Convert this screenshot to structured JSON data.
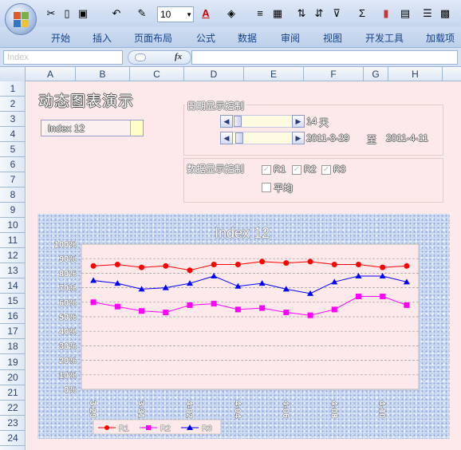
{
  "ribbon": {
    "font_size": "10",
    "tabs": [
      "开始",
      "插入",
      "页面布局",
      "公式",
      "数据",
      "审阅",
      "视图",
      "开发工具",
      "加载项"
    ]
  },
  "formula_bar": {
    "name_box": "Index",
    "fx": "fx",
    "content": ""
  },
  "columns": [
    "A",
    "B",
    "C",
    "D",
    "E",
    "F",
    "G",
    "H"
  ],
  "rows": [
    "1",
    "2",
    "3",
    "4",
    "5",
    "6",
    "7",
    "8",
    "9",
    "10",
    "11",
    "12",
    "13",
    "14",
    "15",
    "16",
    "17",
    "18",
    "19",
    "20",
    "21",
    "22",
    "23",
    "24"
  ],
  "sheet": {
    "title": "动态图表演示",
    "index_combo": "Index 12",
    "date_group": {
      "label": "日期显示控制",
      "days_value": "14",
      "days_unit": "天",
      "start_date": "2011-3-29",
      "to": "至",
      "end_date": "2011-4-11"
    },
    "data_group": {
      "label": "数据显示控制",
      "checks": [
        {
          "label": "R1",
          "checked": true
        },
        {
          "label": "R2",
          "checked": true
        },
        {
          "label": "R3",
          "checked": true
        },
        {
          "label": "平均",
          "checked": false
        }
      ]
    }
  },
  "colors": {
    "R1": "#ff0000",
    "R2": "#ff00ff",
    "R3": "#0000ff",
    "plot_bg": "#fde9e9"
  },
  "chart_data": {
    "type": "line",
    "title": "Index 12",
    "ylim": [
      0,
      100
    ],
    "y_ticks": [
      "0%",
      "10%",
      "20%",
      "30%",
      "40%",
      "50%",
      "60%",
      "70%",
      "80%",
      "90%",
      "100%"
    ],
    "x_labels": [
      "3-29",
      "3-31",
      "4-02",
      "4-04",
      "4-06",
      "4-08",
      "4-10"
    ],
    "series": [
      {
        "name": "R1",
        "marker": "circle",
        "values": [
          85,
          86,
          84,
          85,
          82,
          86,
          86,
          88,
          87,
          88,
          86,
          86,
          84,
          85
        ]
      },
      {
        "name": "R2",
        "marker": "square",
        "values": [
          60,
          57,
          54,
          53,
          58,
          59,
          55,
          56,
          53,
          51,
          55,
          64,
          64,
          58
        ]
      },
      {
        "name": "R3",
        "marker": "triangle",
        "values": [
          75,
          73,
          69,
          70,
          73,
          78,
          71,
          73,
          69,
          66,
          74,
          78,
          78,
          74
        ]
      }
    ]
  }
}
